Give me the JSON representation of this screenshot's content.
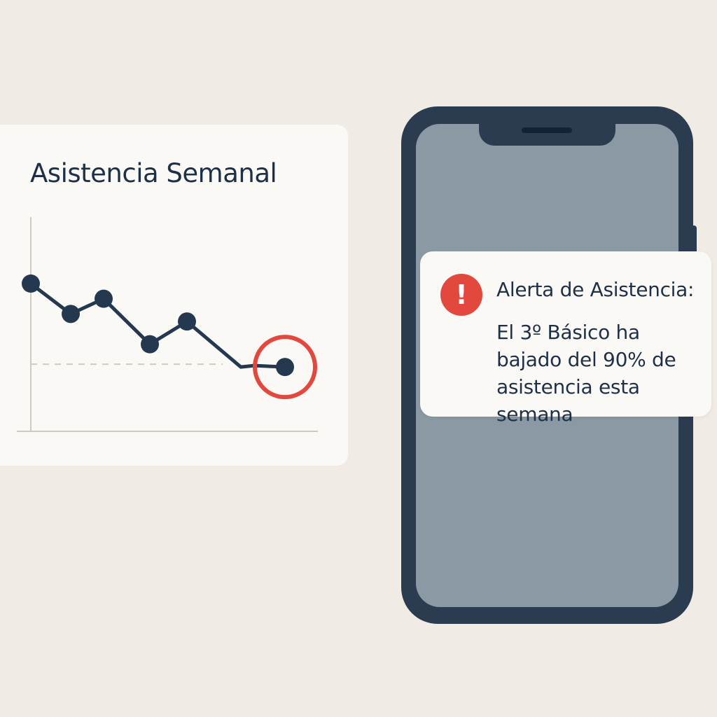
{
  "chart_panel": {
    "title": "Asistencia Semanal"
  },
  "chart_data": {
    "type": "line",
    "title": "Asistencia Semanal",
    "xlabel": "",
    "ylabel": "",
    "series": [
      {
        "values": [
          95,
          91,
          93,
          87,
          90,
          84,
          84
        ]
      }
    ],
    "threshold": 84,
    "ylim": [
      77,
      101
    ],
    "highlight_index": 6,
    "grid": false,
    "colors": {
      "line": "#243850",
      "threshold": "#cfcac4",
      "axis": "#cfcac4",
      "highlight": "#e2483d"
    }
  },
  "notification": {
    "icon": "exclamation-icon",
    "icon_glyph": "!",
    "title": "Alerta de Asistencia:",
    "message": "El 3º Básico ha bajado del 90% de asistencia esta semana",
    "colors": {
      "alert": "#e2483d",
      "text": "#1e3048"
    }
  },
  "phone": {
    "colors": {
      "frame": "#2b3c51",
      "screen": "#8b99a4"
    }
  }
}
